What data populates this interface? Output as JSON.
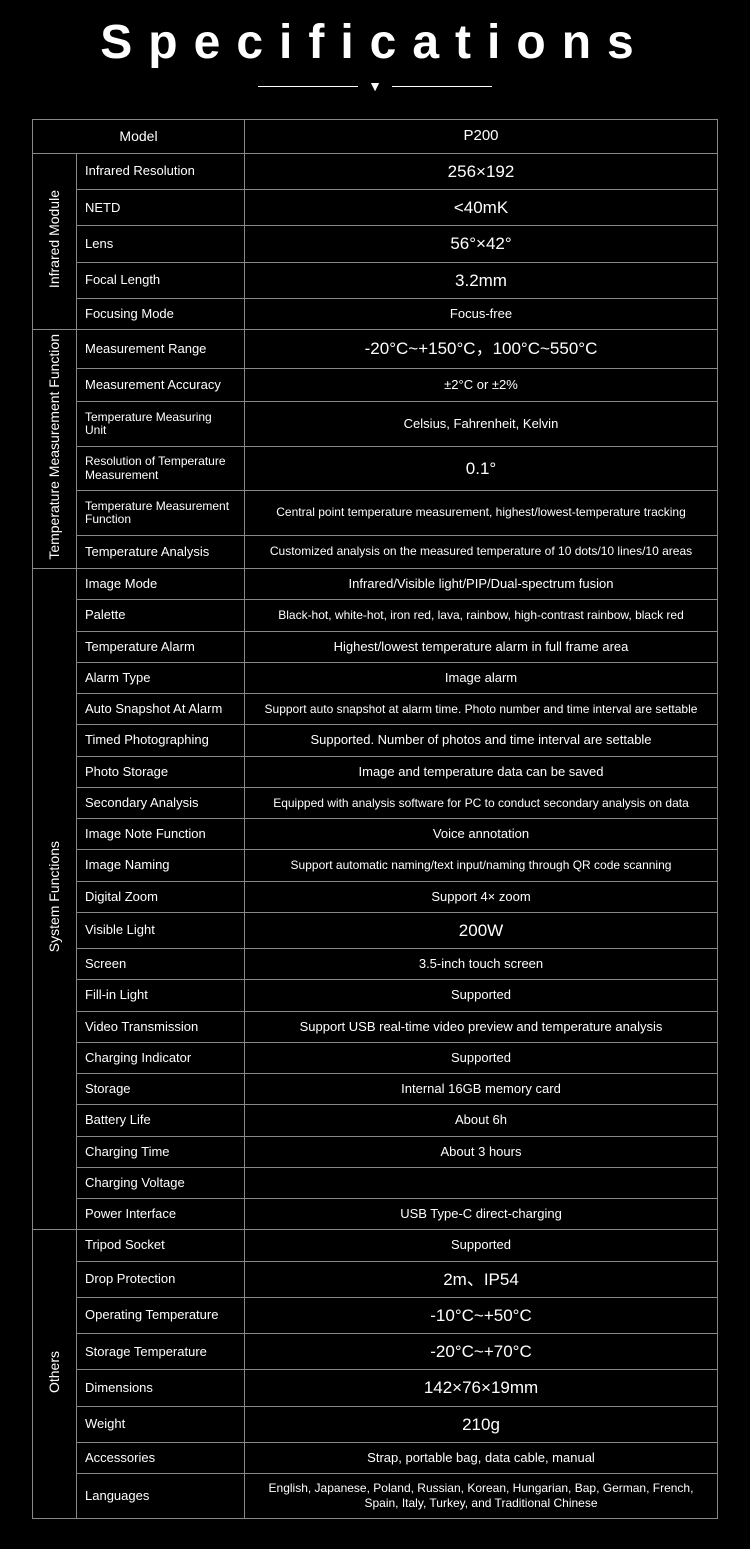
{
  "title": "Specifications",
  "header": {
    "label": "Model",
    "value": "P200"
  },
  "groups": [
    {
      "name": "Infrared Module",
      "rows": [
        {
          "label": "Infrared Resolution",
          "value": "256×192",
          "big": true
        },
        {
          "label": "NETD",
          "value": "<40mK",
          "big": true
        },
        {
          "label": "Lens",
          "value": "56°×42°",
          "big": true
        },
        {
          "label": "Focal Length",
          "value": "3.2mm",
          "big": true
        },
        {
          "label": "Focusing Mode",
          "value": "Focus-free"
        }
      ]
    },
    {
      "name": "Temperature Measurement Function",
      "rows": [
        {
          "label": "Measurement Range",
          "value": "-20°C~+150°C，100°C~550°C",
          "big": true
        },
        {
          "label": "Measurement Accuracy",
          "value": "±2°C or ±2%"
        },
        {
          "label": "Temperature Measuring Unit",
          "value": "Celsius, Fahrenheit, Kelvin",
          "labelsm": true
        },
        {
          "label": "Resolution of Temperature Measurement",
          "value": "0.1°",
          "big": true,
          "labelsm": true
        },
        {
          "label": "Temperature Measurement Function",
          "value": "Central point temperature measurement, highest/lowest-temperature tracking",
          "labelsm": true,
          "sm": true
        },
        {
          "label": "Temperature Analysis",
          "value": "Customized analysis on the measured temperature of 10 dots/10 lines/10 areas",
          "sm": true
        }
      ]
    },
    {
      "name": "System Functions",
      "rows": [
        {
          "label": "Image Mode",
          "value": "Infrared/Visible light/PIP/Dual-spectrum fusion"
        },
        {
          "label": "Palette",
          "value": "Black-hot, white-hot, iron red, lava, rainbow, high-contrast rainbow, black red",
          "sm": true
        },
        {
          "label": "Temperature Alarm",
          "value": "Highest/lowest temperature alarm in full frame area"
        },
        {
          "label": "Alarm Type",
          "value": "Image alarm"
        },
        {
          "label": "Auto Snapshot At Alarm",
          "value": "Support auto snapshot at alarm time. Photo number and time interval are settable",
          "sm": true
        },
        {
          "label": "Timed Photographing",
          "value": "Supported. Number of photos and time interval are settable"
        },
        {
          "label": "Photo Storage",
          "value": "Image and temperature data can be saved"
        },
        {
          "label": "Secondary Analysis",
          "value": "Equipped with analysis software for PC to conduct secondary analysis on data",
          "sm": true
        },
        {
          "label": "Image Note Function",
          "value": "Voice annotation"
        },
        {
          "label": "Image Naming",
          "value": "Support automatic naming/text input/naming through QR code scanning",
          "sm": true
        },
        {
          "label": "Digital Zoom",
          "value": "Support 4× zoom"
        },
        {
          "label": "Visible Light",
          "value": "200W",
          "big": true
        },
        {
          "label": "Screen",
          "value": "3.5-inch touch screen"
        },
        {
          "label": "Fill-in Light",
          "value": "Supported"
        },
        {
          "label": "Video Transmission",
          "value": "Support USB real-time video preview and temperature analysis"
        },
        {
          "label": "Charging Indicator",
          "value": "Supported"
        },
        {
          "label": "Storage",
          "value": "Internal 16GB memory card"
        },
        {
          "label": "Battery Life",
          "value": "About 6h"
        },
        {
          "label": "Charging Time",
          "value": "About 3 hours"
        },
        {
          "label": "Charging Voltage",
          "value": ""
        },
        {
          "label": "Power Interface",
          "value": "USB Type-C direct-charging"
        }
      ]
    },
    {
      "name": "Others",
      "rows": [
        {
          "label": "Tripod Socket",
          "value": "Supported"
        },
        {
          "label": "Drop Protection",
          "value": "2m、IP54",
          "big": true
        },
        {
          "label": "Operating Temperature",
          "value": "-10°C~+50°C",
          "big": true
        },
        {
          "label": "Storage Temperature",
          "value": "-20°C~+70°C",
          "big": true
        },
        {
          "label": "Dimensions",
          "value": "142×76×19mm",
          "big": true
        },
        {
          "label": "Weight",
          "value": "210g",
          "big": true
        },
        {
          "label": "Accessories",
          "value": "Strap, portable bag, data cable, manual"
        },
        {
          "label": "Languages",
          "value": "English, Japanese, Poland, Russian, Korean, Hungarian, Bap, German, French, Spain, Italy, Turkey, and Traditional Chinese",
          "sm": true
        }
      ]
    }
  ]
}
